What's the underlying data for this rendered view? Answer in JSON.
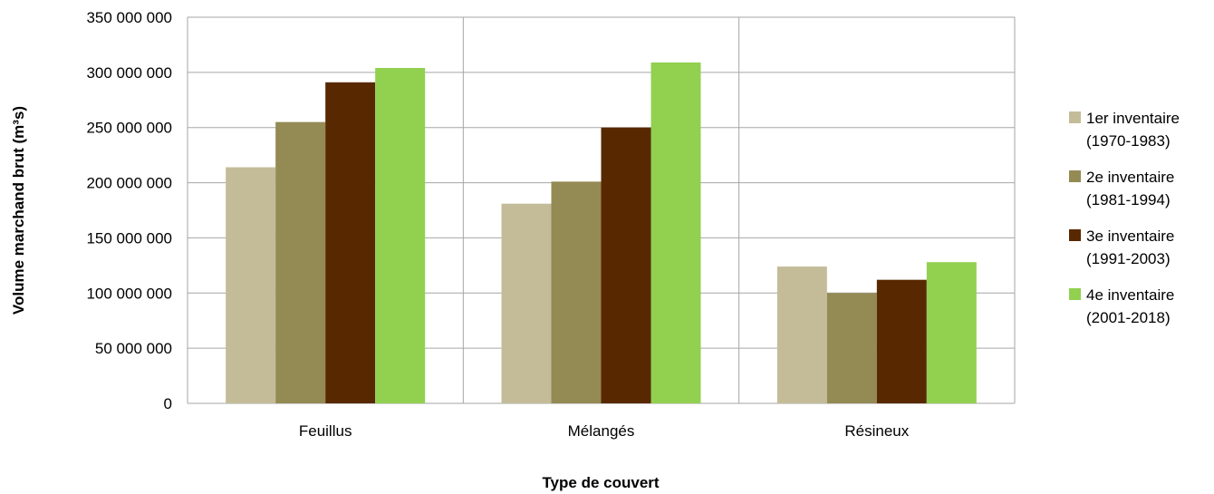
{
  "chart_data": {
    "type": "bar",
    "title": "",
    "xlabel": "Type de couvert",
    "ylabel": "Volume marchand brut (m³s)",
    "ylim": [
      0,
      350000000
    ],
    "yticks": [
      0,
      50000000,
      100000000,
      150000000,
      200000000,
      250000000,
      300000000,
      350000000
    ],
    "ytick_labels": [
      "0",
      "50 000 000",
      "100 000 000",
      "150 000 000",
      "200 000 000",
      "250 000 000",
      "300 000 000",
      "350 000 000"
    ],
    "categories": [
      "Feuillus",
      "Mélangés",
      "Résineux"
    ],
    "grid": true,
    "legend_position": "right",
    "series": [
      {
        "name": "1er inventaire\n(1970-1983)",
        "color": "#c4bc98",
        "values": [
          214000000,
          181000000,
          124000000
        ]
      },
      {
        "name": "2e inventaire\n(1981-1994)",
        "color": "#948a54",
        "values": [
          255000000,
          201000000,
          100000000
        ]
      },
      {
        "name": "3e inventaire\n(1991-2003)",
        "color": "#582800",
        "values": [
          291000000,
          250000000,
          112000000
        ]
      },
      {
        "name": "4e inventaire\n(2001-2018)",
        "color": "#92d050",
        "values": [
          304000000,
          309000000,
          128000000
        ]
      }
    ]
  }
}
